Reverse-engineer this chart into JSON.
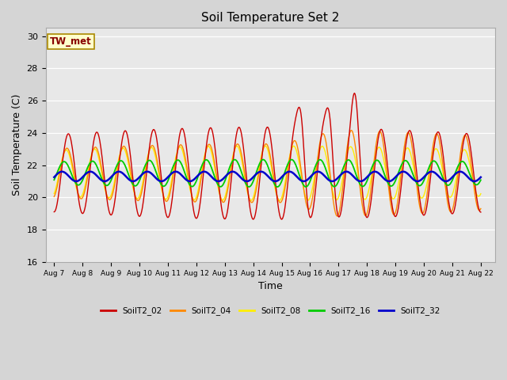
{
  "title": "Soil Temperature Set 2",
  "xlabel": "Time",
  "ylabel": "Soil Temperature (C)",
  "ylim": [
    16,
    30.5
  ],
  "xlim": [
    -0.3,
    15.5
  ],
  "annotation_text": "TW_met",
  "annotation_bg": "#ffffcc",
  "annotation_border": "#aa8800",
  "series_colors": {
    "SoilT2_02": "#cc0000",
    "SoilT2_04": "#ff8800",
    "SoilT2_08": "#ffee00",
    "SoilT2_16": "#00cc00",
    "SoilT2_32": "#0000cc"
  },
  "tick_labels": [
    "Aug 7",
    "Aug 8",
    "Aug 9",
    "Aug 10",
    "Aug 11",
    "Aug 12",
    "Aug 13",
    "Aug 14",
    "Aug 15",
    "Aug 16",
    "Aug 17",
    "Aug 18",
    "Aug 19",
    "Aug 20",
    "Aug 21",
    "Aug 22"
  ],
  "tick_positions": [
    0,
    1,
    2,
    3,
    4,
    5,
    6,
    7,
    8,
    9,
    10,
    11,
    12,
    13,
    14,
    15
  ],
  "yticks": [
    16,
    18,
    20,
    22,
    24,
    26,
    28,
    30
  ]
}
